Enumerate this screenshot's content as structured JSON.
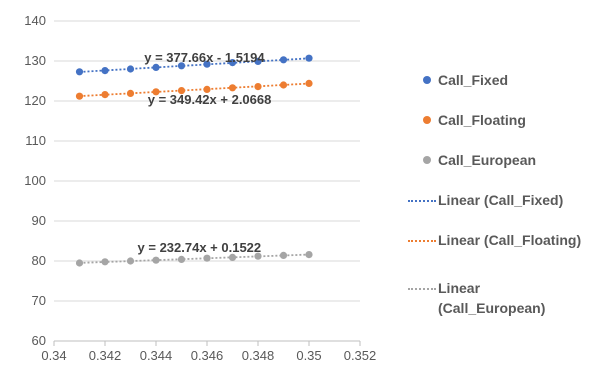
{
  "chart_data": {
    "type": "scatter",
    "x": [
      0.341,
      0.342,
      0.343,
      0.344,
      0.345,
      0.346,
      0.347,
      0.348,
      0.349,
      0.35
    ],
    "xlim": [
      0.34,
      0.352
    ],
    "ylim": [
      60,
      140
    ],
    "x_ticks": [
      "0.34",
      "0.342",
      "0.344",
      "0.346",
      "0.348",
      "0.35",
      "0.352"
    ],
    "x_tick_values": [
      0.34,
      0.342,
      0.344,
      0.346,
      0.348,
      0.35,
      0.352
    ],
    "y_ticks": [
      "60",
      "70",
      "80",
      "90",
      "100",
      "110",
      "120",
      "130",
      "140"
    ],
    "y_tick_values": [
      60,
      70,
      80,
      90,
      100,
      110,
      120,
      130,
      140
    ],
    "grid": "horizontal",
    "legend_position": "right",
    "series": [
      {
        "name": "Call_Fixed",
        "color": "#4472C4",
        "values": [
          127.3,
          127.6,
          128.0,
          128.4,
          128.8,
          129.2,
          129.6,
          129.9,
          130.3,
          130.7
        ],
        "trendline": {
          "name": "Linear (Call_Fixed)",
          "slope": 377.66,
          "intercept": -1.5194,
          "equation": "y = 377.66x - 1.5194"
        }
      },
      {
        "name": "Call_Floating",
        "color": "#ED7D31",
        "values": [
          121.2,
          121.6,
          121.9,
          122.3,
          122.6,
          122.9,
          123.3,
          123.6,
          124.0,
          124.4
        ],
        "trendline": {
          "name": "Linear (Call_Floating)",
          "slope": 349.42,
          "intercept": 2.0668,
          "equation": "y = 349.42x + 2.0668"
        }
      },
      {
        "name": "Call_European",
        "color": "#A5A5A5",
        "values": [
          79.5,
          79.8,
          80.0,
          80.2,
          80.4,
          80.7,
          80.9,
          81.2,
          81.4,
          81.6
        ],
        "trendline": {
          "name": "Linear (Call_European)",
          "slope": 232.74,
          "intercept": 0.1522,
          "equation": "y = 232.74x + 0.1522"
        }
      }
    ]
  },
  "legend": {
    "items": [
      {
        "kind": "marker",
        "label": "Call_Fixed",
        "color": "#4472C4"
      },
      {
        "kind": "marker",
        "label": "Call_Floating",
        "color": "#ED7D31"
      },
      {
        "kind": "marker",
        "label": "Call_European",
        "color": "#A5A5A5"
      },
      {
        "kind": "line",
        "label": "Linear (Call_Fixed)",
        "color": "#4472C4"
      },
      {
        "kind": "line",
        "label": "Linear (Call_Floating)",
        "color": "#ED7D31"
      },
      {
        "kind": "line",
        "label": "Linear (Call_European)",
        "color": "#A5A5A5"
      }
    ]
  }
}
